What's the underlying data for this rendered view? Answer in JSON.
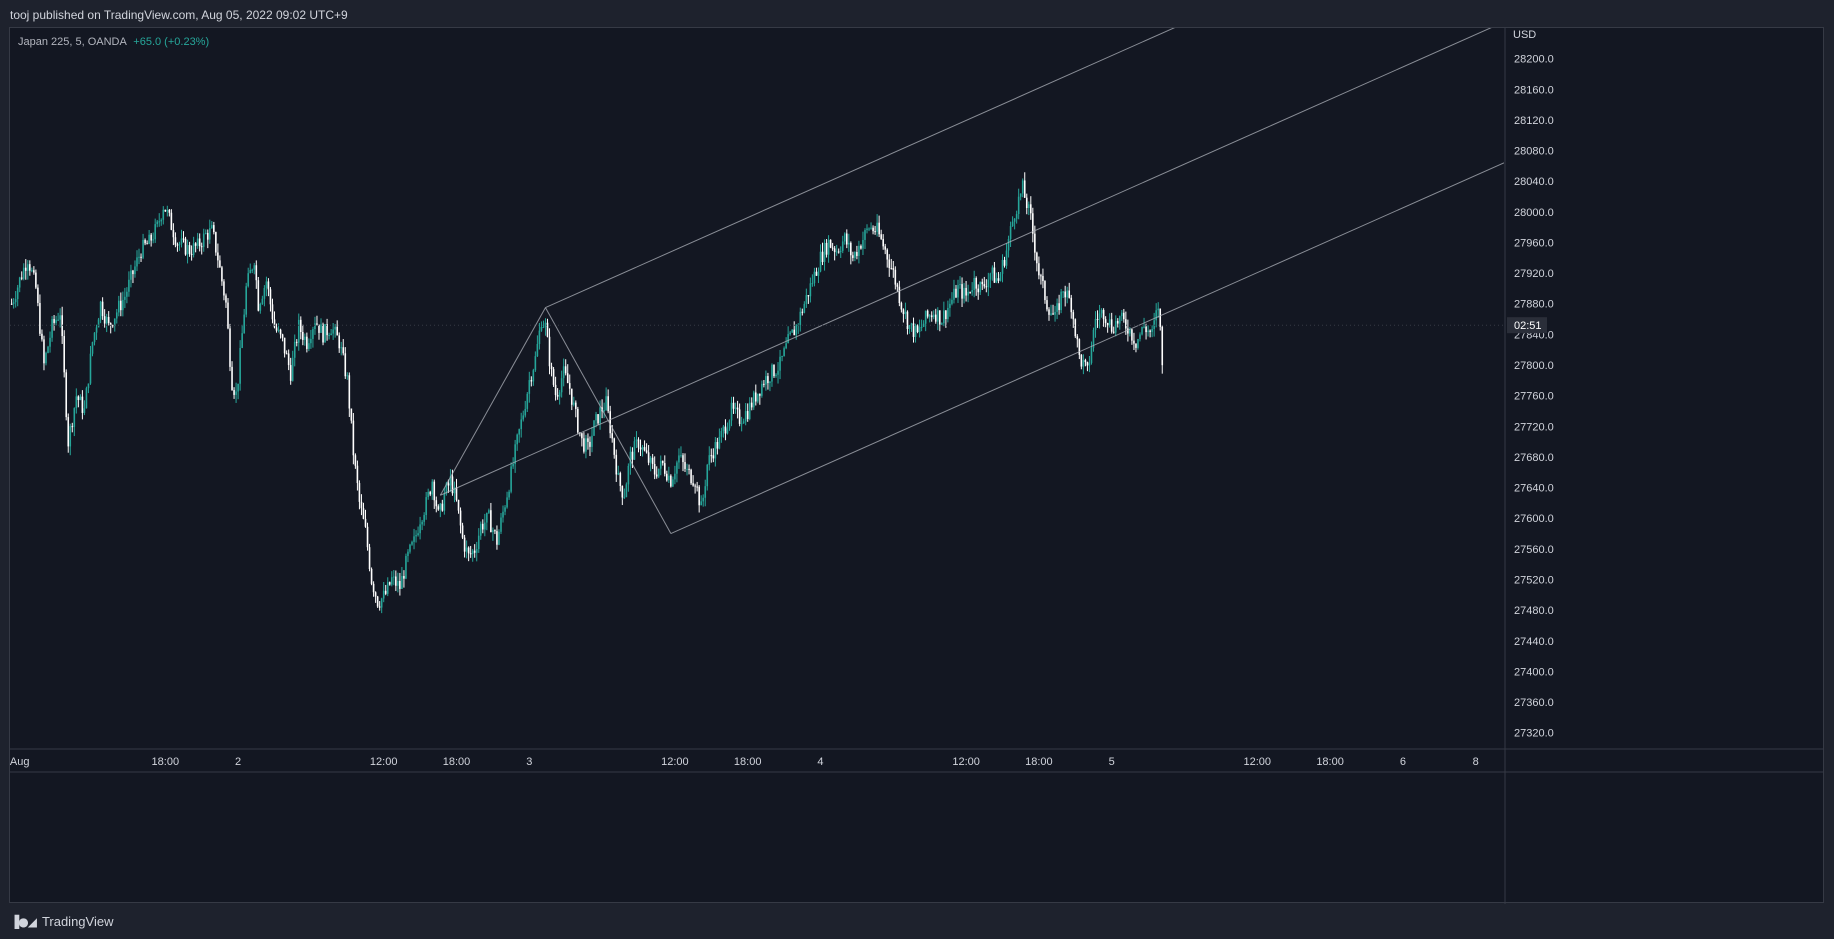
{
  "header": {
    "published_text": "tooj published on TradingView.com, Aug 05, 2022 09:02 UTC+9"
  },
  "legend": {
    "symbol": "Japan 225, 5, OANDA",
    "change": "+65.0 (+0.23%)"
  },
  "footer": {
    "brand": "TradingView",
    "logo_icon": "tradingview-logo-icon"
  },
  "colors": {
    "background": "#131722",
    "frame": "#1e222d",
    "up": "#26a69a",
    "down": "#ffffff",
    "wick": "#e0e3eb",
    "trendline": "#b2b5be",
    "axis_text": "#d1d4dc",
    "price_tag_bg": "#2a2e39"
  },
  "chart_data": {
    "type": "line",
    "title": "Japan 225, 5, OANDA",
    "currency": "USD",
    "ylim": [
      27300,
      28240
    ],
    "y_ticks": [
      27320,
      27360,
      27400,
      27440,
      27480,
      27520,
      27560,
      27600,
      27640,
      27680,
      27720,
      27760,
      27800,
      27840,
      27880,
      27920,
      27960,
      28000,
      28040,
      28080,
      28120,
      28160,
      28200
    ],
    "y_tick_labels": [
      "27320.0",
      "27360.0",
      "27400.0",
      "27440.0",
      "27480.0",
      "27520.0",
      "27560.0",
      "27600.0",
      "27640.0",
      "27680.0",
      "27720.0",
      "27760.0",
      "27800.0",
      "27840.0",
      "27880.0",
      "27920.0",
      "27960.0",
      "28000.0",
      "28040.0",
      "28080.0",
      "28120.0",
      "28160.0",
      "28200.0"
    ],
    "x_ticks": [
      {
        "t": 0,
        "label": "Aug"
      },
      {
        "t": 18,
        "label": "18:00"
      },
      {
        "t": 27,
        "label": "2"
      },
      {
        "t": 45,
        "label": "12:00"
      },
      {
        "t": 54,
        "label": "18:00"
      },
      {
        "t": 63,
        "label": "3"
      },
      {
        "t": 81,
        "label": "12:00"
      },
      {
        "t": 90,
        "label": "18:00"
      },
      {
        "t": 99,
        "label": "4"
      },
      {
        "t": 117,
        "label": "12:00"
      },
      {
        "t": 126,
        "label": "18:00"
      },
      {
        "t": 135,
        "label": "5"
      },
      {
        "t": 153,
        "label": "12:00"
      },
      {
        "t": 162,
        "label": "18:00"
      },
      {
        "t": 171,
        "label": "6"
      },
      {
        "t": 180,
        "label": "8"
      }
    ],
    "x_range_hours": [
      -1.2,
      183.5
    ],
    "price_series": {
      "name": "Japan 225",
      "points": [
        [
          -1.0,
          27880
        ],
        [
          0.3,
          27920
        ],
        [
          1.0,
          27940
        ],
        [
          2.0,
          27900
        ],
        [
          3.0,
          27800
        ],
        [
          4.0,
          27850
        ],
        [
          5.0,
          27870
        ],
        [
          6.0,
          27700
        ],
        [
          7.0,
          27760
        ],
        [
          8.0,
          27740
        ],
        [
          9.0,
          27830
        ],
        [
          10.0,
          27880
        ],
        [
          11.0,
          27850
        ],
        [
          12.0,
          27870
        ],
        [
          13.0,
          27890
        ],
        [
          14.0,
          27920
        ],
        [
          15.0,
          27950
        ],
        [
          16.0,
          27960
        ],
        [
          17.0,
          27980
        ],
        [
          17.8,
          28010
        ],
        [
          18.5,
          27990
        ],
        [
          19.5,
          27960
        ],
        [
          21.0,
          27950
        ],
        [
          22.0,
          27955
        ],
        [
          23.0,
          27970
        ],
        [
          23.8,
          27975
        ],
        [
          24.5,
          27940
        ],
        [
          25.5,
          27880
        ],
        [
          26.2,
          27780
        ],
        [
          26.8,
          27760
        ],
        [
          27.5,
          27840
        ],
        [
          28.0,
          27900
        ],
        [
          29.0,
          27940
        ],
        [
          29.5,
          27880
        ],
        [
          30.5,
          27910
        ],
        [
          31.5,
          27850
        ],
        [
          32.5,
          27830
        ],
        [
          33.5,
          27790
        ],
        [
          34.5,
          27850
        ],
        [
          35.5,
          27830
        ],
        [
          36.5,
          27860
        ],
        [
          37.5,
          27840
        ],
        [
          38.5,
          27850
        ],
        [
          39.5,
          27830
        ],
        [
          40.5,
          27780
        ],
        [
          41.3,
          27680
        ],
        [
          42.0,
          27620
        ],
        [
          42.8,
          27580
        ],
        [
          43.5,
          27520
        ],
        [
          44.3,
          27490
        ],
        [
          45.2,
          27500
        ],
        [
          46.0,
          27520
        ],
        [
          47.0,
          27510
        ],
        [
          48.0,
          27550
        ],
        [
          48.8,
          27570
        ],
        [
          49.5,
          27600
        ],
        [
          50.3,
          27620
        ],
        [
          51.0,
          27650
        ],
        [
          51.8,
          27600
        ],
        [
          52.5,
          27630
        ],
        [
          53.3,
          27650
        ],
        [
          54.0,
          27620
        ],
        [
          54.8,
          27570
        ],
        [
          55.5,
          27550
        ],
        [
          56.3,
          27560
        ],
        [
          57.0,
          27590
        ],
        [
          58.0,
          27600
        ],
        [
          59.0,
          27570
        ],
        [
          60.0,
          27620
        ],
        [
          60.8,
          27660
        ],
        [
          61.5,
          27700
        ],
        [
          62.3,
          27740
        ],
        [
          63.0,
          27780
        ],
        [
          63.8,
          27810
        ],
        [
          64.5,
          27860
        ],
        [
          65.0,
          27850
        ],
        [
          65.7,
          27790
        ],
        [
          66.3,
          27760
        ],
        [
          67.2,
          27790
        ],
        [
          68.0,
          27770
        ],
        [
          68.8,
          27730
        ],
        [
          69.5,
          27700
        ],
        [
          70.3,
          27690
        ],
        [
          71.0,
          27720
        ],
        [
          71.8,
          27740
        ],
        [
          72.5,
          27750
        ],
        [
          73.3,
          27700
        ],
        [
          74.0,
          27650
        ],
        [
          74.7,
          27630
        ],
        [
          75.5,
          27680
        ],
        [
          76.5,
          27700
        ],
        [
          77.5,
          27680
        ],
        [
          78.5,
          27660
        ],
        [
          79.5,
          27670
        ],
        [
          80.5,
          27650
        ],
        [
          81.5,
          27680
        ],
        [
          82.5,
          27660
        ],
        [
          83.5,
          27650
        ],
        [
          84.3,
          27610
        ],
        [
          85.0,
          27670
        ],
        [
          85.8,
          27690
        ],
        [
          86.5,
          27700
        ],
        [
          87.2,
          27720
        ],
        [
          88.0,
          27740
        ],
        [
          89.0,
          27730
        ],
        [
          90.0,
          27740
        ],
        [
          91.0,
          27760
        ],
        [
          92.0,
          27780
        ],
        [
          93.0,
          27790
        ],
        [
          94.0,
          27800
        ],
        [
          95.0,
          27830
        ],
        [
          96.0,
          27850
        ],
        [
          97.0,
          27880
        ],
        [
          98.0,
          27910
        ],
        [
          99.0,
          27940
        ],
        [
          100.0,
          27960
        ],
        [
          101.0,
          27950
        ],
        [
          102.0,
          27965
        ],
        [
          103.0,
          27940
        ],
        [
          104.0,
          27960
        ],
        [
          105.0,
          27980
        ],
        [
          106.0,
          27975
        ],
        [
          107.0,
          27950
        ],
        [
          108.0,
          27920
        ],
        [
          109.0,
          27880
        ],
        [
          110.0,
          27850
        ],
        [
          111.0,
          27840
        ],
        [
          112.0,
          27860
        ],
        [
          113.0,
          27870
        ],
        [
          114.0,
          27860
        ],
        [
          115.0,
          27880
        ],
        [
          116.0,
          27900
        ],
        [
          117.0,
          27890
        ],
        [
          118.0,
          27910
        ],
        [
          119.0,
          27900
        ],
        [
          120.0,
          27920
        ],
        [
          121.0,
          27910
        ],
        [
          122.0,
          27950
        ],
        [
          123.0,
          28000
        ],
        [
          124.0,
          28030
        ],
        [
          125.0,
          27990
        ],
        [
          126.0,
          27920
        ],
        [
          127.0,
          27880
        ],
        [
          128.0,
          27860
        ],
        [
          129.0,
          27900
        ],
        [
          130.0,
          27880
        ],
        [
          131.0,
          27810
        ],
        [
          132.0,
          27790
        ],
        [
          133.0,
          27860
        ],
        [
          134.0,
          27870
        ],
        [
          135.0,
          27850
        ],
        [
          136.0,
          27860
        ],
        [
          137.0,
          27850
        ],
        [
          138.0,
          27830
        ],
        [
          139.0,
          27850
        ],
        [
          140.0,
          27840
        ],
        [
          140.8,
          27880
        ],
        [
          141.3,
          27790
        ]
      ]
    },
    "pitchfork": {
      "pivots": [
        [
          52.0,
          27630
        ],
        [
          65.0,
          27875
        ],
        [
          80.5,
          27580
        ]
      ],
      "end_t": 183.5
    },
    "last_price_label": "02:51",
    "last_price_value": 27852
  }
}
